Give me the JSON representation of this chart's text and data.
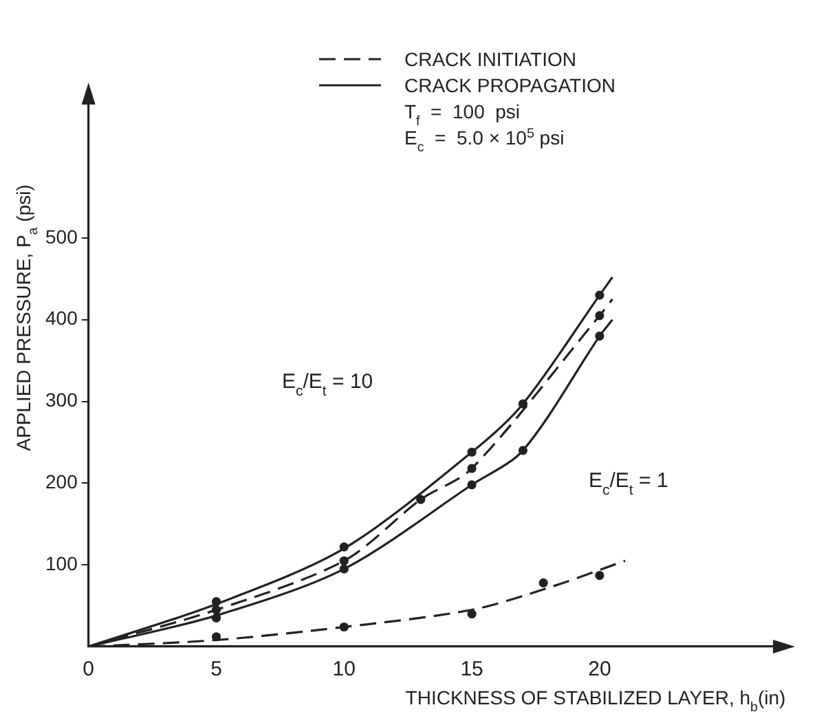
{
  "chart_data": {
    "type": "line",
    "xlabel": "THICKNESS OF STABILIZED LAYER, h$_{b}$(in)",
    "ylabel": "APPLIED PRESSURE, P$_{a}$ (psi)",
    "xlim": [
      0,
      27
    ],
    "ylim": [
      0,
      670
    ],
    "xticks": [
      0,
      5,
      10,
      15,
      20
    ],
    "yticks": [
      100,
      200,
      300,
      400,
      500
    ],
    "grid": false,
    "legend": "top",
    "series": [
      {
        "name": "CRACK INITIATION",
        "color": "#222222",
        "line_style": "dashed",
        "marker": "none",
        "x": [
          0,
          5,
          10,
          13,
          15,
          20,
          20.5
        ],
        "values": [
          0,
          45,
          105,
          180,
          218,
          405,
          425
        ]
      },
      {
        "name": "CRACK PROPAGATION",
        "color": "#222222",
        "line_style": "solid",
        "marker": "none",
        "x": [
          0,
          5,
          10,
          15,
          17,
          20,
          20.5
        ],
        "values": [
          0,
          52,
          120,
          238,
          297,
          430,
          452
        ]
      },
      {
        "color": "#222222",
        "line_style": "solid",
        "marker": "none",
        "x": [
          0,
          5,
          10,
          15,
          17,
          20,
          20.5
        ],
        "values": [
          0,
          38,
          95,
          198,
          240,
          380,
          400
        ]
      },
      {
        "color": "#222222",
        "line_style": "dashed",
        "marker": "none",
        "x": [
          0,
          5,
          10,
          15,
          18,
          21
        ],
        "values": [
          0,
          8,
          24,
          45,
          72,
          105
        ]
      },
      {
        "type": "scatter",
        "color": "#222222",
        "marker": "circle",
        "x": [
          5,
          5,
          5,
          10,
          10,
          10,
          13,
          15,
          15,
          15,
          17,
          17,
          20,
          20,
          20,
          5,
          10,
          15,
          17.8,
          20
        ],
        "values": [
          55,
          45,
          35,
          122,
          105,
          95,
          180,
          238,
          218,
          198,
          297,
          240,
          430,
          405,
          380,
          12,
          24,
          40,
          78,
          87
        ]
      }
    ],
    "annotations": [
      "T$_{f}$  =  100  psi",
      "E$_{c}$  =  5.0 × 10$^{5}$ psi",
      "E$_{c}$/E$_{t}$ = 10",
      "E$_{c}$/E$_{t}$ = 1"
    ]
  }
}
